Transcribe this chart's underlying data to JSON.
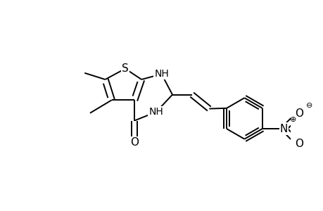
{
  "bg_color": "#ffffff",
  "line_color": "#000000",
  "line_width": 1.4,
  "font_size": 10,
  "xlim": [
    0.0,
    4.6
  ],
  "ylim": [
    0.0,
    3.0
  ]
}
